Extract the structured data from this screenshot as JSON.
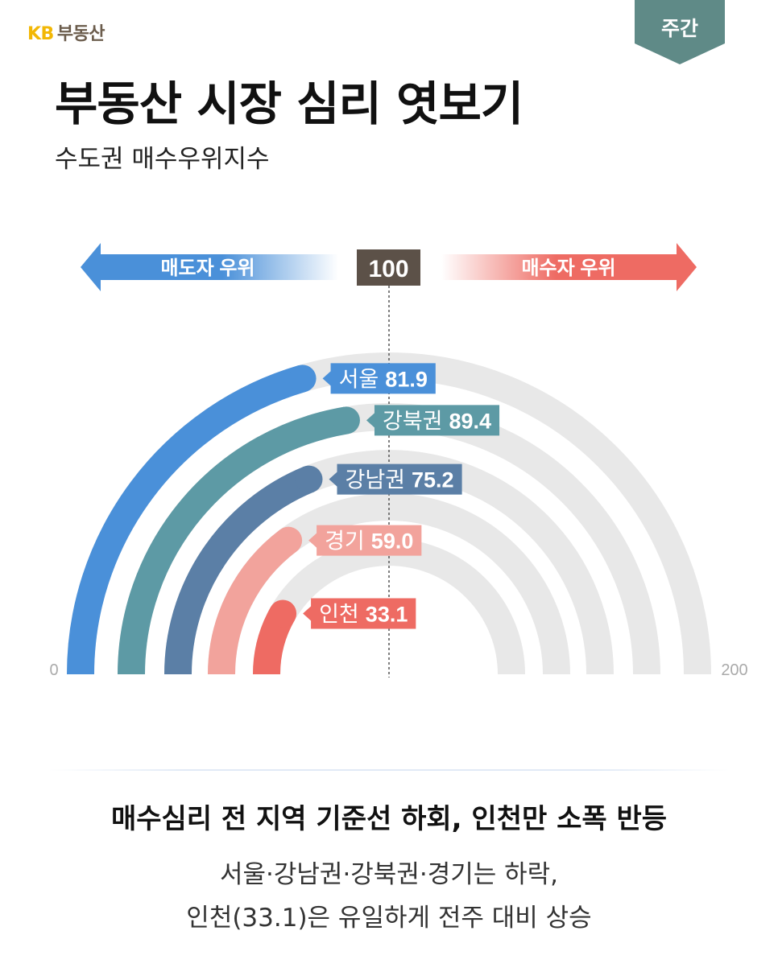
{
  "brand": {
    "kb": "KB",
    "name": "부동산"
  },
  "badge": {
    "label": "주간"
  },
  "header": {
    "title": "부동산 시장 심리 엿보기",
    "subtitle": "수도권 매수우위지수"
  },
  "colors": {
    "seller": "#4a90d9",
    "buyer": "#ee6b63",
    "track": "#e8e8e8",
    "badge": "#5f8a87",
    "center_box": "#5c5148"
  },
  "chart_data": {
    "type": "gauge",
    "center_label": "100",
    "left_label": "매도자 우위",
    "right_label": "매수자 우위",
    "axis_min_label": "0",
    "axis_max_label": "200",
    "range": [
      0,
      200
    ],
    "series": [
      {
        "name": "서울",
        "value": 81.9,
        "value_label": "81.9",
        "color": "#4a90d9"
      },
      {
        "name": "강북권",
        "value": 89.4,
        "value_label": "89.4",
        "color": "#5d9aa5"
      },
      {
        "name": "강남권",
        "value": 75.2,
        "value_label": "75.2",
        "color": "#5b7fa6"
      },
      {
        "name": "경기",
        "value": 59.0,
        "value_label": "59.0",
        "color": "#f2a39c"
      },
      {
        "name": "인천",
        "value": 33.1,
        "value_label": "33.1",
        "color": "#ee6b63"
      }
    ]
  },
  "footer": {
    "headline": "매수심리 전 지역 기준선 하회, 인천만 소폭 반등",
    "line1": "서울·강남권·강북권·경기는 하락,",
    "line2": "인천(33.1)은 유일하게 전주 대비 상승"
  }
}
